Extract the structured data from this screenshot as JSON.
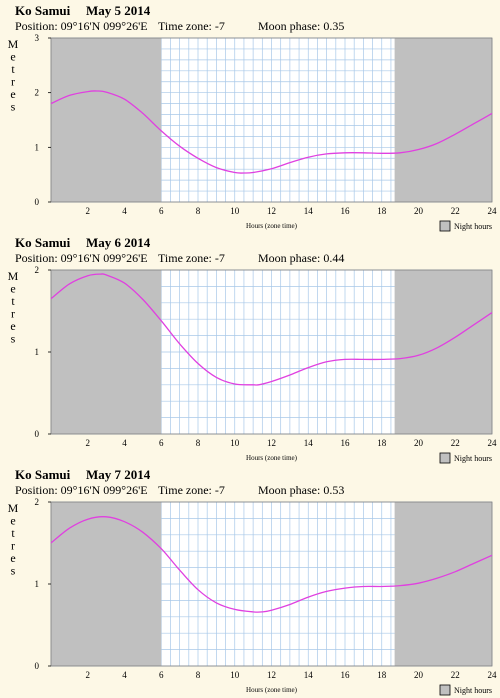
{
  "night_color": "#c0c0c0",
  "day_color": "#ffffff",
  "grid_color": "#a8c8e8",
  "curve_color": "#e040e0",
  "legend_label": "Night hours",
  "chart_data": [
    {
      "type": "line",
      "place": "Ko Samui",
      "date": "May 5 2014",
      "position": "Position: 09°16'N 099°26'E",
      "timezone": "Time zone: -7",
      "moon": "Moon phase: 0.35",
      "ylabel": "Metres",
      "xlabel": "Hours (zone time)",
      "xlim": [
        0,
        24
      ],
      "ylim": [
        0,
        3
      ],
      "yticks": [
        "0",
        "1",
        "2",
        "3"
      ],
      "xticks": [
        "2",
        "4",
        "6",
        "8",
        "10",
        "12",
        "14",
        "16",
        "18",
        "20",
        "22",
        "24"
      ],
      "night_hours": [
        [
          0,
          6.0
        ],
        [
          18.7,
          24
        ]
      ],
      "grid": true,
      "series": [
        {
          "x": [
            0,
            1,
            2,
            2.5,
            3,
            4,
            5,
            6,
            7,
            8,
            9,
            10,
            10.5,
            11,
            12,
            13,
            14,
            15,
            16,
            17,
            18,
            19,
            20,
            21,
            22,
            23,
            24
          ],
          "y": [
            1.8,
            1.95,
            2.02,
            2.03,
            2.01,
            1.88,
            1.62,
            1.3,
            1.02,
            0.8,
            0.63,
            0.54,
            0.53,
            0.54,
            0.61,
            0.72,
            0.82,
            0.88,
            0.9,
            0.9,
            0.89,
            0.9,
            0.96,
            1.07,
            1.24,
            1.43,
            1.62
          ]
        }
      ]
    },
    {
      "type": "line",
      "place": "Ko Samui",
      "date": "May 6 2014",
      "position": "Position: 09°16'N 099°26'E",
      "timezone": "Time zone: -7",
      "moon": "Moon phase: 0.44",
      "ylabel": "Metres",
      "xlabel": "Hours (zone time)",
      "xlim": [
        0,
        24
      ],
      "ylim": [
        0,
        2
      ],
      "yticks": [
        "0",
        "1",
        "2"
      ],
      "xticks": [
        "2",
        "4",
        "6",
        "8",
        "10",
        "12",
        "14",
        "16",
        "18",
        "20",
        "22",
        "24"
      ],
      "night_hours": [
        [
          0,
          6.0
        ],
        [
          18.7,
          24
        ]
      ],
      "grid": true,
      "series": [
        {
          "x": [
            0,
            1,
            2,
            2.7,
            3,
            4,
            5,
            6,
            7,
            8,
            9,
            10,
            11,
            11.3,
            12,
            13,
            14,
            15,
            16,
            17,
            18,
            19,
            20,
            21,
            22,
            23,
            24
          ],
          "y": [
            1.65,
            1.83,
            1.93,
            1.95,
            1.94,
            1.84,
            1.64,
            1.38,
            1.1,
            0.86,
            0.69,
            0.61,
            0.6,
            0.6,
            0.64,
            0.72,
            0.81,
            0.88,
            0.91,
            0.91,
            0.91,
            0.92,
            0.96,
            1.05,
            1.18,
            1.33,
            1.48
          ]
        }
      ]
    },
    {
      "type": "line",
      "place": "Ko Samui",
      "date": "May 7 2014",
      "position": "Position: 09°16'N 099°26'E",
      "timezone": "Time zone: -7",
      "moon": "Moon phase: 0.53",
      "ylabel": "Metres",
      "xlabel": "Hours (zone time)",
      "xlim": [
        0,
        24
      ],
      "ylim": [
        0,
        2
      ],
      "yticks": [
        "0",
        "1",
        "2"
      ],
      "xticks": [
        "2",
        "4",
        "6",
        "8",
        "10",
        "12",
        "14",
        "16",
        "18",
        "20",
        "22",
        "24"
      ],
      "night_hours": [
        [
          0,
          6.0
        ],
        [
          18.7,
          24
        ]
      ],
      "grid": true,
      "series": [
        {
          "x": [
            0,
            1,
            2,
            3,
            4,
            5,
            6,
            7,
            8,
            9,
            10,
            11,
            11.5,
            12,
            13,
            14,
            15,
            16,
            17,
            18,
            19,
            20,
            21,
            22,
            23,
            24
          ],
          "y": [
            1.5,
            1.68,
            1.79,
            1.82,
            1.76,
            1.63,
            1.43,
            1.17,
            0.93,
            0.77,
            0.69,
            0.66,
            0.66,
            0.68,
            0.75,
            0.84,
            0.91,
            0.95,
            0.97,
            0.97,
            0.98,
            1.01,
            1.07,
            1.15,
            1.25,
            1.35
          ]
        }
      ]
    }
  ]
}
